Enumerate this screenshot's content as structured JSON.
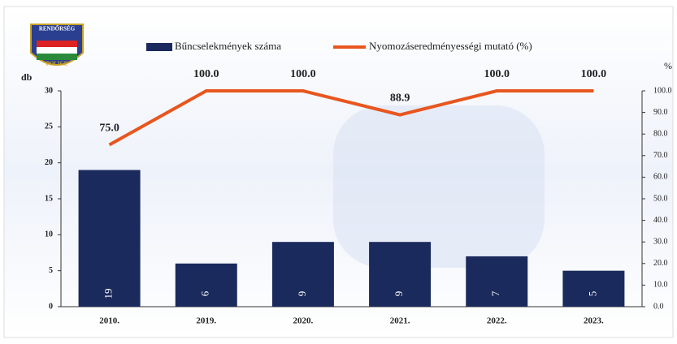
{
  "logo": {
    "top": "RENDŐRSÉG",
    "bottom": "POLICE"
  },
  "chart_data": {
    "type": "bar",
    "categories": [
      "2010.",
      "2019.",
      "2020.",
      "2021.",
      "2022.",
      "2023."
    ],
    "series": [
      {
        "name": "Bűncselekmények száma",
        "type": "bar",
        "color": "#1b2a5c",
        "values": [
          19,
          6,
          9,
          9,
          7,
          5
        ]
      },
      {
        "name": "Nyomozáseredményességi mutató (%)",
        "type": "line",
        "axis": "y2",
        "color": "#e8561e",
        "values": [
          75.0,
          100.0,
          100.0,
          88.9,
          100.0,
          100.0
        ],
        "value_labels": [
          "75.0",
          "100.0",
          "100.0",
          "88.9",
          "100.0",
          "100.0"
        ]
      }
    ],
    "ylabel": "db",
    "y2label": "%",
    "ylim": [
      0,
      30
    ],
    "yticks": [
      0,
      5,
      10,
      15,
      20,
      25,
      30
    ],
    "y2lim": [
      0,
      100
    ],
    "y2ticks": [
      {
        "value": 0,
        "label": "0.0"
      },
      {
        "value": 10,
        "label": "10.0"
      },
      {
        "value": 20,
        "label": "20.0"
      },
      {
        "value": 30,
        "label": "30.0"
      },
      {
        "value": 40,
        "label": "40.0"
      },
      {
        "value": 50,
        "label": "50.0"
      },
      {
        "value": 60,
        "label": "60.0"
      },
      {
        "value": 70,
        "label": "70.0"
      },
      {
        "value": 80,
        "label": "80.0"
      },
      {
        "value": 90,
        "label": "90.0"
      },
      {
        "value": 100,
        "label": "100.0"
      }
    ],
    "legend": "top",
    "grid": false
  }
}
